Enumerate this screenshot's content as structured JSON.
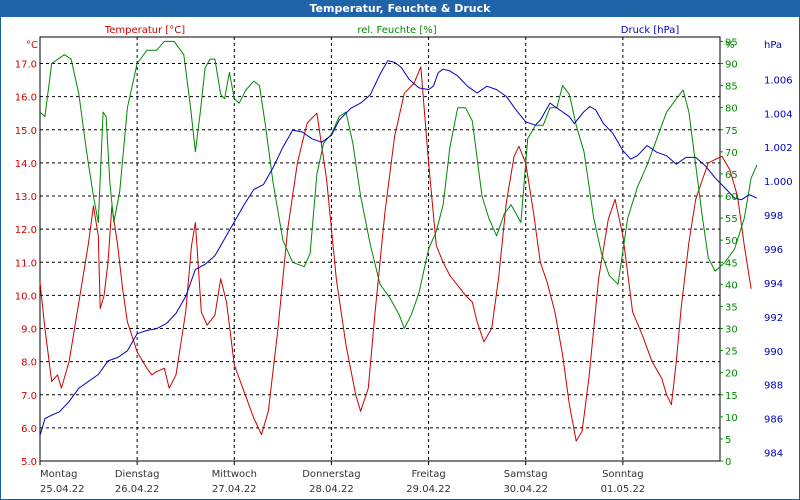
{
  "window": {
    "title": "Temperatur, Feuchte & Druck"
  },
  "colors": {
    "temperature": "#cc0000",
    "humidity": "#008800",
    "pressure": "#0000c0",
    "grid": "#000000",
    "axis_text": "#333333"
  },
  "chart_data": {
    "type": "line",
    "title": "Temperatur, Feuchte & Druck",
    "x_days": [
      {
        "day": "Montag",
        "date": "25.04.22"
      },
      {
        "day": "Dienstag",
        "date": "26.04.22"
      },
      {
        "day": "Mittwoch",
        "date": "27.04.22"
      },
      {
        "day": "Donnerstag",
        "date": "28.04.22"
      },
      {
        "day": "Freitag",
        "date": "29.04.22"
      },
      {
        "day": "Samstag",
        "date": "30.04.22"
      },
      {
        "day": "Sonntag",
        "date": "01.05.22"
      }
    ],
    "x_range_days": [
      0,
      7
    ],
    "axes": {
      "temperature": {
        "label": "Temperatur [°C]",
        "unit": "°C",
        "ylim": [
          5.0,
          17.8
        ],
        "ticks": [
          "5.0",
          "6.0",
          "7.0",
          "8.0",
          "9.0",
          "10.0",
          "11.0",
          "12.0",
          "13.0",
          "14.0",
          "15.0",
          "16.0",
          "17.0"
        ]
      },
      "humidity": {
        "label": "rel. Feuchte [%]",
        "unit": "%",
        "ylim": [
          0,
          96
        ],
        "ticks": [
          "0",
          "5",
          "10",
          "15",
          "20",
          "25",
          "30",
          "35",
          "40",
          "45",
          "50",
          "55",
          "60",
          "65",
          "70",
          "75",
          "80",
          "85",
          "90",
          "95"
        ]
      },
      "pressure": {
        "label": "Druck [hPa]",
        "unit": "hPa",
        "ylim": [
          983.5,
          1008.5
        ],
        "ticks": [
          "984",
          "986",
          "988",
          "990",
          "992",
          "994",
          "996",
          "998",
          "1.000",
          "1.002",
          "1.004",
          "1.006"
        ]
      }
    },
    "series": [
      {
        "name": "Temperatur [°C]",
        "color": "#cc0000",
        "points": [
          [
            0,
            10.4
          ],
          [
            0.05,
            9.0
          ],
          [
            0.12,
            7.4
          ],
          [
            0.18,
            7.6
          ],
          [
            0.22,
            7.2
          ],
          [
            0.3,
            8.0
          ],
          [
            0.4,
            9.8
          ],
          [
            0.5,
            11.6
          ],
          [
            0.55,
            12.7
          ],
          [
            0.6,
            11.8
          ],
          [
            0.62,
            9.6
          ],
          [
            0.66,
            10.0
          ],
          [
            0.7,
            11.0
          ],
          [
            0.74,
            12.7
          ],
          [
            0.8,
            11.5
          ],
          [
            0.85,
            10.2
          ],
          [
            0.9,
            9.2
          ],
          [
            1.0,
            8.3
          ],
          [
            1.1,
            7.8
          ],
          [
            1.15,
            7.6
          ],
          [
            1.2,
            7.7
          ],
          [
            1.28,
            7.8
          ],
          [
            1.33,
            7.2
          ],
          [
            1.4,
            7.6
          ],
          [
            1.5,
            9.5
          ],
          [
            1.56,
            11.5
          ],
          [
            1.6,
            12.2
          ],
          [
            1.66,
            9.5
          ],
          [
            1.72,
            9.1
          ],
          [
            1.8,
            9.4
          ],
          [
            1.86,
            10.5
          ],
          [
            1.92,
            9.8
          ],
          [
            2.0,
            7.9
          ],
          [
            2.1,
            7.1
          ],
          [
            2.2,
            6.3
          ],
          [
            2.28,
            5.8
          ],
          [
            2.35,
            6.5
          ],
          [
            2.45,
            9.0
          ],
          [
            2.55,
            12.0
          ],
          [
            2.65,
            14.0
          ],
          [
            2.75,
            15.2
          ],
          [
            2.85,
            15.5
          ],
          [
            2.95,
            13.5
          ],
          [
            3.05,
            10.5
          ],
          [
            3.15,
            8.5
          ],
          [
            3.25,
            7.0
          ],
          [
            3.3,
            6.5
          ],
          [
            3.38,
            7.2
          ],
          [
            3.45,
            9.5
          ],
          [
            3.55,
            12.5
          ],
          [
            3.65,
            14.8
          ],
          [
            3.75,
            16.1
          ],
          [
            3.85,
            16.4
          ],
          [
            3.92,
            16.9
          ],
          [
            4.0,
            14.0
          ],
          [
            4.08,
            11.5
          ],
          [
            4.15,
            11.0
          ],
          [
            4.22,
            10.6
          ],
          [
            4.3,
            10.3
          ],
          [
            4.38,
            10.0
          ],
          [
            4.45,
            9.8
          ],
          [
            4.5,
            9.2
          ],
          [
            4.57,
            8.6
          ],
          [
            4.65,
            9.0
          ],
          [
            4.72,
            10.5
          ],
          [
            4.8,
            12.8
          ],
          [
            4.88,
            14.2
          ],
          [
            4.93,
            14.5
          ],
          [
            5.0,
            14.0
          ],
          [
            5.08,
            12.5
          ],
          [
            5.15,
            11.0
          ],
          [
            5.22,
            10.4
          ],
          [
            5.3,
            9.5
          ],
          [
            5.38,
            8.2
          ],
          [
            5.45,
            6.7
          ],
          [
            5.52,
            5.6
          ],
          [
            5.58,
            5.9
          ],
          [
            5.65,
            7.5
          ],
          [
            5.75,
            10.5
          ],
          [
            5.85,
            12.3
          ],
          [
            5.92,
            12.9
          ],
          [
            6.0,
            11.8
          ],
          [
            6.1,
            9.5
          ],
          [
            6.2,
            8.8
          ],
          [
            6.3,
            8.0
          ],
          [
            6.4,
            7.5
          ],
          [
            6.45,
            7.0
          ],
          [
            6.5,
            6.7
          ],
          [
            6.55,
            8.0
          ],
          [
            6.6,
            9.6
          ],
          [
            6.68,
            11.6
          ],
          [
            6.75,
            12.9
          ],
          [
            6.82,
            13.5
          ],
          [
            6.88,
            14.0
          ],
          [
            6.95,
            14.1
          ],
          [
            7.02,
            14.2
          ],
          [
            7.1,
            13.8
          ],
          [
            7.18,
            13.0
          ],
          [
            7.25,
            11.5
          ],
          [
            7.32,
            10.2
          ]
        ]
      },
      {
        "name": "rel. Feuchte [%]",
        "color": "#008800",
        "points": [
          [
            0,
            79
          ],
          [
            0.05,
            78
          ],
          [
            0.12,
            90
          ],
          [
            0.25,
            92
          ],
          [
            0.32,
            91
          ],
          [
            0.4,
            83
          ],
          [
            0.48,
            70
          ],
          [
            0.55,
            60
          ],
          [
            0.6,
            54
          ],
          [
            0.65,
            79
          ],
          [
            0.68,
            78
          ],
          [
            0.72,
            63
          ],
          [
            0.76,
            54
          ],
          [
            0.82,
            61
          ],
          [
            0.9,
            80
          ],
          [
            1.0,
            90
          ],
          [
            1.1,
            93
          ],
          [
            1.2,
            93
          ],
          [
            1.28,
            95
          ],
          [
            1.38,
            95
          ],
          [
            1.48,
            92
          ],
          [
            1.55,
            80
          ],
          [
            1.6,
            70
          ],
          [
            1.65,
            79
          ],
          [
            1.7,
            89
          ],
          [
            1.75,
            91
          ],
          [
            1.8,
            91
          ],
          [
            1.86,
            83
          ],
          [
            1.9,
            82
          ],
          [
            1.95,
            88
          ],
          [
            2.0,
            82
          ],
          [
            2.05,
            81
          ],
          [
            2.12,
            84
          ],
          [
            2.2,
            86
          ],
          [
            2.26,
            85
          ],
          [
            2.32,
            76
          ],
          [
            2.4,
            63
          ],
          [
            2.5,
            50
          ],
          [
            2.6,
            45
          ],
          [
            2.72,
            44
          ],
          [
            2.78,
            47
          ],
          [
            2.85,
            65
          ],
          [
            2.92,
            72
          ],
          [
            3.0,
            74
          ],
          [
            3.08,
            78
          ],
          [
            3.15,
            79
          ],
          [
            3.22,
            72
          ],
          [
            3.3,
            60
          ],
          [
            3.4,
            49
          ],
          [
            3.5,
            40
          ],
          [
            3.6,
            37
          ],
          [
            3.7,
            33
          ],
          [
            3.75,
            30
          ],
          [
            3.82,
            33
          ],
          [
            3.9,
            38
          ],
          [
            4.0,
            48
          ],
          [
            4.08,
            52
          ],
          [
            4.15,
            58
          ],
          [
            4.22,
            71
          ],
          [
            4.3,
            80
          ],
          [
            4.38,
            80
          ],
          [
            4.45,
            77
          ],
          [
            4.55,
            60
          ],
          [
            4.62,
            55
          ],
          [
            4.7,
            51
          ],
          [
            4.78,
            56
          ],
          [
            4.85,
            58
          ],
          [
            4.95,
            54
          ],
          [
            5.02,
            73
          ],
          [
            5.1,
            76
          ],
          [
            5.18,
            76
          ],
          [
            5.25,
            80
          ],
          [
            5.32,
            80
          ],
          [
            5.38,
            85
          ],
          [
            5.45,
            83
          ],
          [
            5.52,
            76
          ],
          [
            5.6,
            70
          ],
          [
            5.7,
            55
          ],
          [
            5.78,
            47
          ],
          [
            5.86,
            42
          ],
          [
            5.95,
            40
          ],
          [
            6.05,
            55
          ],
          [
            6.15,
            62
          ],
          [
            6.25,
            67
          ],
          [
            6.35,
            73
          ],
          [
            6.45,
            79
          ],
          [
            6.55,
            82
          ],
          [
            6.62,
            84
          ],
          [
            6.68,
            79
          ],
          [
            6.75,
            67
          ],
          [
            6.82,
            55
          ],
          [
            6.88,
            46
          ],
          [
            6.95,
            43
          ],
          [
            7.05,
            45
          ],
          [
            7.15,
            48
          ],
          [
            7.25,
            55
          ],
          [
            7.32,
            64
          ],
          [
            7.38,
            67
          ]
        ]
      },
      {
        "name": "Druck [hPa]",
        "color": "#0000c0",
        "points": [
          [
            0,
            985.0
          ],
          [
            0.05,
            986.0
          ],
          [
            0.12,
            986.2
          ],
          [
            0.2,
            986.4
          ],
          [
            0.3,
            987.0
          ],
          [
            0.4,
            987.8
          ],
          [
            0.5,
            988.2
          ],
          [
            0.6,
            988.6
          ],
          [
            0.7,
            989.4
          ],
          [
            0.8,
            989.6
          ],
          [
            0.9,
            990.0
          ],
          [
            1.0,
            991.0
          ],
          [
            1.1,
            991.2
          ],
          [
            1.2,
            991.3
          ],
          [
            1.3,
            991.6
          ],
          [
            1.4,
            992.2
          ],
          [
            1.5,
            993.2
          ],
          [
            1.6,
            994.8
          ],
          [
            1.7,
            995.1
          ],
          [
            1.8,
            995.6
          ],
          [
            1.9,
            996.6
          ],
          [
            2.0,
            997.6
          ],
          [
            2.1,
            998.6
          ],
          [
            2.2,
            999.5
          ],
          [
            2.3,
            999.8
          ],
          [
            2.4,
            1000.8
          ],
          [
            2.5,
            1002.0
          ],
          [
            2.6,
            1003.0
          ],
          [
            2.7,
            1002.9
          ],
          [
            2.8,
            1002.5
          ],
          [
            2.9,
            1002.3
          ],
          [
            3.0,
            1002.7
          ],
          [
            3.08,
            1003.6
          ],
          [
            3.2,
            1004.3
          ],
          [
            3.3,
            1004.6
          ],
          [
            3.4,
            1005.1
          ],
          [
            3.5,
            1006.3
          ],
          [
            3.58,
            1007.1
          ],
          [
            3.65,
            1007.0
          ],
          [
            3.72,
            1006.7
          ],
          [
            3.8,
            1006.0
          ],
          [
            3.9,
            1005.5
          ],
          [
            4.0,
            1005.4
          ],
          [
            4.05,
            1005.6
          ],
          [
            4.1,
            1006.4
          ],
          [
            4.15,
            1006.6
          ],
          [
            4.22,
            1006.5
          ],
          [
            4.3,
            1006.2
          ],
          [
            4.4,
            1005.6
          ],
          [
            4.5,
            1005.2
          ],
          [
            4.6,
            1005.6
          ],
          [
            4.7,
            1005.4
          ],
          [
            4.8,
            1005.0
          ],
          [
            4.9,
            1004.2
          ],
          [
            5.0,
            1003.5
          ],
          [
            5.1,
            1003.3
          ],
          [
            5.15,
            1003.6
          ],
          [
            5.25,
            1004.6
          ],
          [
            5.35,
            1004.2
          ],
          [
            5.45,
            1003.8
          ],
          [
            5.5,
            1003.4
          ],
          [
            5.6,
            1004.1
          ],
          [
            5.66,
            1004.4
          ],
          [
            5.72,
            1004.2
          ],
          [
            5.8,
            1003.4
          ],
          [
            5.9,
            1002.8
          ],
          [
            6.0,
            1001.8
          ],
          [
            6.08,
            1001.3
          ],
          [
            6.15,
            1001.5
          ],
          [
            6.25,
            1002.1
          ],
          [
            6.35,
            1001.7
          ],
          [
            6.45,
            1001.5
          ],
          [
            6.55,
            1001.0
          ],
          [
            6.65,
            1001.4
          ],
          [
            6.75,
            1001.4
          ],
          [
            6.85,
            1000.9
          ],
          [
            6.95,
            1000.2
          ],
          [
            7.05,
            999.6
          ],
          [
            7.15,
            999.0
          ],
          [
            7.22,
            998.9
          ],
          [
            7.3,
            999.2
          ],
          [
            7.38,
            999.0
          ]
        ]
      }
    ]
  }
}
